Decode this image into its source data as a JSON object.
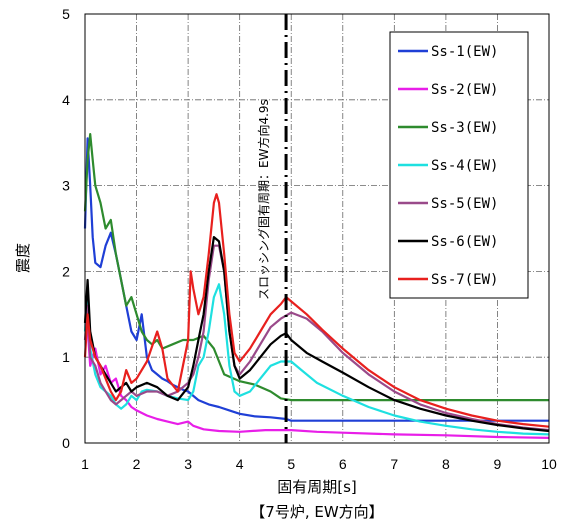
{
  "chart_data": {
    "type": "line",
    "xlabel": "固有周期[s]",
    "ylabel": "震度",
    "caption": "【7号炉, EW方向】",
    "xlim": [
      1,
      10
    ],
    "ylim": [
      0,
      5
    ],
    "xticks": [
      "1",
      "2",
      "3",
      "4",
      "5",
      "6",
      "7",
      "8",
      "9",
      "10"
    ],
    "yticks": [
      "0",
      "1",
      "2",
      "3",
      "4",
      "5"
    ],
    "grid": true,
    "legend_position": "top-right",
    "annotation": {
      "text": "スロッシング固有周期：EW方向4.9s",
      "x": 4.9
    },
    "series": [
      {
        "name": "Ss-1(EW)",
        "color": "#1f3fd6",
        "points": [
          [
            1,
            2.5
          ],
          [
            1.05,
            3.55
          ],
          [
            1.1,
            3.0
          ],
          [
            1.15,
            2.4
          ],
          [
            1.2,
            2.1
          ],
          [
            1.3,
            2.05
          ],
          [
            1.4,
            2.3
          ],
          [
            1.5,
            2.45
          ],
          [
            1.6,
            2.2
          ],
          [
            1.7,
            1.9
          ],
          [
            1.8,
            1.6
          ],
          [
            1.9,
            1.3
          ],
          [
            2.0,
            1.2
          ],
          [
            2.1,
            1.5
          ],
          [
            2.2,
            1.0
          ],
          [
            2.3,
            0.85
          ],
          [
            2.4,
            0.8
          ],
          [
            2.5,
            0.75
          ],
          [
            2.6,
            0.72
          ],
          [
            2.7,
            0.68
          ],
          [
            2.8,
            0.65
          ],
          [
            2.9,
            0.62
          ],
          [
            3.0,
            0.6
          ],
          [
            3.2,
            0.5
          ],
          [
            3.4,
            0.45
          ],
          [
            3.6,
            0.42
          ],
          [
            3.8,
            0.38
          ],
          [
            4.0,
            0.34
          ],
          [
            4.3,
            0.31
          ],
          [
            4.6,
            0.3
          ],
          [
            4.9,
            0.28
          ],
          [
            5.0,
            0.26
          ],
          [
            6.0,
            0.26
          ],
          [
            7.0,
            0.26
          ],
          [
            8.0,
            0.26
          ],
          [
            9.0,
            0.26
          ],
          [
            10,
            0.26
          ]
        ]
      },
      {
        "name": "Ss-2(EW)",
        "color": "#e81ee8",
        "points": [
          [
            1,
            1.2
          ],
          [
            1.05,
            1.35
          ],
          [
            1.1,
            0.9
          ],
          [
            1.2,
            1.1
          ],
          [
            1.3,
            0.8
          ],
          [
            1.4,
            0.9
          ],
          [
            1.5,
            0.7
          ],
          [
            1.6,
            0.75
          ],
          [
            1.7,
            0.55
          ],
          [
            1.8,
            0.5
          ],
          [
            1.9,
            0.42
          ],
          [
            2.0,
            0.38
          ],
          [
            2.2,
            0.32
          ],
          [
            2.4,
            0.28
          ],
          [
            2.6,
            0.25
          ],
          [
            2.8,
            0.22
          ],
          [
            3.0,
            0.25
          ],
          [
            3.1,
            0.2
          ],
          [
            3.3,
            0.16
          ],
          [
            3.6,
            0.14
          ],
          [
            4.0,
            0.13
          ],
          [
            4.5,
            0.15
          ],
          [
            5.0,
            0.15
          ],
          [
            5.5,
            0.13
          ],
          [
            6.0,
            0.12
          ],
          [
            7.0,
            0.1
          ],
          [
            8.0,
            0.09
          ],
          [
            9.0,
            0.07
          ],
          [
            10,
            0.06
          ]
        ]
      },
      {
        "name": "Ss-3(EW)",
        "color": "#2e8b2e",
        "points": [
          [
            1,
            2.7
          ],
          [
            1.05,
            3.3
          ],
          [
            1.1,
            3.6
          ],
          [
            1.15,
            3.3
          ],
          [
            1.2,
            3.0
          ],
          [
            1.3,
            2.8
          ],
          [
            1.4,
            2.5
          ],
          [
            1.5,
            2.6
          ],
          [
            1.6,
            2.2
          ],
          [
            1.7,
            1.9
          ],
          [
            1.8,
            1.6
          ],
          [
            1.9,
            1.7
          ],
          [
            2.0,
            1.5
          ],
          [
            2.1,
            1.3
          ],
          [
            2.2,
            1.2
          ],
          [
            2.3,
            1.15
          ],
          [
            2.4,
            1.2
          ],
          [
            2.5,
            1.1
          ],
          [
            2.7,
            1.15
          ],
          [
            2.9,
            1.2
          ],
          [
            3.1,
            1.2
          ],
          [
            3.3,
            1.25
          ],
          [
            3.5,
            1.1
          ],
          [
            3.7,
            0.8
          ],
          [
            4.0,
            0.72
          ],
          [
            4.3,
            0.68
          ],
          [
            4.6,
            0.6
          ],
          [
            4.8,
            0.52
          ],
          [
            5.0,
            0.5
          ],
          [
            5.5,
            0.5
          ],
          [
            6.0,
            0.5
          ],
          [
            7.0,
            0.5
          ],
          [
            8.0,
            0.5
          ],
          [
            9.0,
            0.5
          ],
          [
            10,
            0.5
          ]
        ]
      },
      {
        "name": "Ss-4(EW)",
        "color": "#1ee0e0",
        "points": [
          [
            1,
            1.3
          ],
          [
            1.05,
            1.8
          ],
          [
            1.1,
            1.1
          ],
          [
            1.2,
            0.8
          ],
          [
            1.3,
            0.65
          ],
          [
            1.4,
            0.6
          ],
          [
            1.5,
            0.55
          ],
          [
            1.6,
            0.45
          ],
          [
            1.7,
            0.4
          ],
          [
            1.8,
            0.45
          ],
          [
            1.9,
            0.55
          ],
          [
            2.0,
            0.5
          ],
          [
            2.1,
            0.6
          ],
          [
            2.2,
            0.62
          ],
          [
            2.4,
            0.6
          ],
          [
            2.6,
            0.55
          ],
          [
            2.8,
            0.52
          ],
          [
            3.0,
            0.5
          ],
          [
            3.1,
            0.6
          ],
          [
            3.2,
            0.9
          ],
          [
            3.3,
            1.0
          ],
          [
            3.4,
            1.3
          ],
          [
            3.5,
            1.7
          ],
          [
            3.6,
            1.85
          ],
          [
            3.7,
            1.5
          ],
          [
            3.8,
            0.9
          ],
          [
            3.9,
            0.6
          ],
          [
            4.0,
            0.55
          ],
          [
            4.2,
            0.6
          ],
          [
            4.4,
            0.75
          ],
          [
            4.6,
            0.9
          ],
          [
            4.8,
            0.95
          ],
          [
            5.0,
            0.95
          ],
          [
            5.2,
            0.85
          ],
          [
            5.5,
            0.7
          ],
          [
            6.0,
            0.55
          ],
          [
            6.5,
            0.42
          ],
          [
            7.0,
            0.32
          ],
          [
            7.5,
            0.25
          ],
          [
            8.0,
            0.2
          ],
          [
            8.5,
            0.16
          ],
          [
            9.0,
            0.13
          ],
          [
            9.5,
            0.11
          ],
          [
            10,
            0.1
          ]
        ]
      },
      {
        "name": "Ss-5(EW)",
        "color": "#9a4a8a",
        "points": [
          [
            1,
            1.2
          ],
          [
            1.05,
            1.6
          ],
          [
            1.1,
            1.0
          ],
          [
            1.2,
            0.9
          ],
          [
            1.3,
            0.7
          ],
          [
            1.4,
            0.6
          ],
          [
            1.5,
            0.5
          ],
          [
            1.6,
            0.45
          ],
          [
            1.7,
            0.5
          ],
          [
            1.8,
            0.55
          ],
          [
            1.9,
            0.6
          ],
          [
            2.0,
            0.55
          ],
          [
            2.2,
            0.6
          ],
          [
            2.4,
            0.6
          ],
          [
            2.6,
            0.55
          ],
          [
            2.8,
            0.6
          ],
          [
            3.0,
            0.7
          ],
          [
            3.1,
            0.8
          ],
          [
            3.2,
            1.0
          ],
          [
            3.3,
            1.3
          ],
          [
            3.4,
            1.9
          ],
          [
            3.5,
            2.3
          ],
          [
            3.6,
            2.3
          ],
          [
            3.7,
            2.0
          ],
          [
            3.8,
            1.3
          ],
          [
            3.9,
            0.9
          ],
          [
            4.0,
            0.8
          ],
          [
            4.2,
            0.95
          ],
          [
            4.4,
            1.15
          ],
          [
            4.6,
            1.35
          ],
          [
            4.8,
            1.45
          ],
          [
            5.0,
            1.52
          ],
          [
            5.3,
            1.45
          ],
          [
            5.6,
            1.3
          ],
          [
            6.0,
            1.05
          ],
          [
            6.5,
            0.8
          ],
          [
            7.0,
            0.6
          ],
          [
            7.5,
            0.45
          ],
          [
            8.0,
            0.35
          ],
          [
            8.5,
            0.28
          ],
          [
            9.0,
            0.22
          ],
          [
            9.5,
            0.18
          ],
          [
            10,
            0.15
          ]
        ]
      },
      {
        "name": "Ss-6(EW)",
        "color": "#000000",
        "points": [
          [
            1,
            1.4
          ],
          [
            1.05,
            1.9
          ],
          [
            1.1,
            1.3
          ],
          [
            1.2,
            1.0
          ],
          [
            1.3,
            0.9
          ],
          [
            1.4,
            0.8
          ],
          [
            1.5,
            0.7
          ],
          [
            1.6,
            0.6
          ],
          [
            1.7,
            0.65
          ],
          [
            1.8,
            0.7
          ],
          [
            1.9,
            0.6
          ],
          [
            2.0,
            0.65
          ],
          [
            2.2,
            0.7
          ],
          [
            2.4,
            0.65
          ],
          [
            2.6,
            0.55
          ],
          [
            2.8,
            0.5
          ],
          [
            3.0,
            0.65
          ],
          [
            3.1,
            0.9
          ],
          [
            3.2,
            1.2
          ],
          [
            3.3,
            1.5
          ],
          [
            3.4,
            2.0
          ],
          [
            3.5,
            2.4
          ],
          [
            3.6,
            2.35
          ],
          [
            3.7,
            2.0
          ],
          [
            3.8,
            1.3
          ],
          [
            3.9,
            0.9
          ],
          [
            4.0,
            0.75
          ],
          [
            4.2,
            0.85
          ],
          [
            4.4,
            1.0
          ],
          [
            4.6,
            1.15
          ],
          [
            4.8,
            1.25
          ],
          [
            4.9,
            1.28
          ],
          [
            5.0,
            1.2
          ],
          [
            5.3,
            1.05
          ],
          [
            5.6,
            0.95
          ],
          [
            6.0,
            0.82
          ],
          [
            6.5,
            0.65
          ],
          [
            7.0,
            0.5
          ],
          [
            7.5,
            0.4
          ],
          [
            8.0,
            0.32
          ],
          [
            8.5,
            0.26
          ],
          [
            9.0,
            0.21
          ],
          [
            9.5,
            0.17
          ],
          [
            10,
            0.14
          ]
        ]
      },
      {
        "name": "Ss-7(EW)",
        "color": "#e8201e",
        "points": [
          [
            1,
            1.0
          ],
          [
            1.05,
            1.5
          ],
          [
            1.1,
            1.2
          ],
          [
            1.2,
            1.0
          ],
          [
            1.3,
            0.9
          ],
          [
            1.4,
            0.75
          ],
          [
            1.5,
            0.6
          ],
          [
            1.6,
            0.5
          ],
          [
            1.7,
            0.6
          ],
          [
            1.8,
            0.85
          ],
          [
            1.9,
            0.7
          ],
          [
            2.0,
            0.75
          ],
          [
            2.2,
            0.95
          ],
          [
            2.4,
            1.3
          ],
          [
            2.5,
            1.1
          ],
          [
            2.6,
            0.75
          ],
          [
            2.8,
            0.6
          ],
          [
            3.0,
            1.2
          ],
          [
            3.05,
            2.0
          ],
          [
            3.1,
            1.8
          ],
          [
            3.2,
            1.5
          ],
          [
            3.3,
            1.7
          ],
          [
            3.4,
            2.2
          ],
          [
            3.5,
            2.8
          ],
          [
            3.55,
            2.9
          ],
          [
            3.6,
            2.8
          ],
          [
            3.7,
            2.2
          ],
          [
            3.8,
            1.5
          ],
          [
            3.9,
            1.05
          ],
          [
            4.0,
            0.95
          ],
          [
            4.2,
            1.1
          ],
          [
            4.4,
            1.3
          ],
          [
            4.6,
            1.5
          ],
          [
            4.8,
            1.62
          ],
          [
            4.9,
            1.7
          ],
          [
            5.0,
            1.65
          ],
          [
            5.3,
            1.5
          ],
          [
            5.6,
            1.32
          ],
          [
            6.0,
            1.1
          ],
          [
            6.5,
            0.85
          ],
          [
            7.0,
            0.65
          ],
          [
            7.5,
            0.5
          ],
          [
            8.0,
            0.4
          ],
          [
            8.5,
            0.32
          ],
          [
            9.0,
            0.26
          ],
          [
            9.5,
            0.22
          ],
          [
            10,
            0.19
          ]
        ]
      }
    ]
  }
}
